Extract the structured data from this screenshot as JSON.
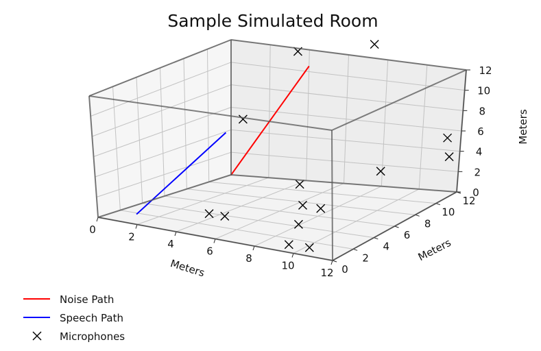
{
  "chart_data": {
    "type": "scatter",
    "projection": "3d",
    "title": "Sample Simulated Room",
    "xlabel": "Meters",
    "ylabel": "Meters",
    "zlabel": "Meters",
    "xlim": [
      0,
      12
    ],
    "ylim": [
      0,
      12
    ],
    "zlim": [
      0,
      12
    ],
    "xticks": [
      "0",
      "2",
      "4",
      "6",
      "8",
      "10",
      "12"
    ],
    "yticks": [
      "0",
      "2",
      "4",
      "6",
      "8",
      "10",
      "12"
    ],
    "zticks": [
      "0",
      "2",
      "4",
      "6",
      "8",
      "10",
      "12"
    ],
    "grid": true,
    "legend": "bottom-left",
    "series": [
      {
        "name": "Noise Path",
        "kind": "line",
        "color": "#ff0000",
        "points": [
          [
            5.2,
            3.0,
            4.5
          ],
          [
            4.0,
            12.0,
            10.5
          ]
        ]
      },
      {
        "name": "Speech Path",
        "kind": "line",
        "color": "#0000ff",
        "points": [
          [
            2.0,
            0.0,
            1.0
          ],
          [
            5.0,
            3.0,
            8.5
          ]
        ]
      },
      {
        "name": "Microphones",
        "kind": "scatter",
        "marker": "x",
        "color": "#000000",
        "points": [
          [
            4.6,
            2.0,
            1.1
          ],
          [
            5.4,
            2.0,
            1.1
          ],
          [
            9.5,
            0.5,
            0.4
          ],
          [
            10.5,
            0.6,
            0.4
          ],
          [
            9.3,
            1.8,
            1.6
          ],
          [
            9.3,
            2.2,
            3.2
          ],
          [
            10.0,
            2.6,
            2.9
          ],
          [
            8.6,
            3.2,
            4.5
          ],
          [
            5.3,
            4.0,
            9.4
          ],
          [
            12.0,
            4.5,
            6.0
          ],
          [
            12.0,
            10.7,
            6.0
          ],
          [
            12.0,
            11.0,
            4.0
          ],
          [
            4.7,
            9.8,
            13.0
          ],
          [
            7.0,
            12.5,
            13.0
          ]
        ]
      }
    ]
  }
}
